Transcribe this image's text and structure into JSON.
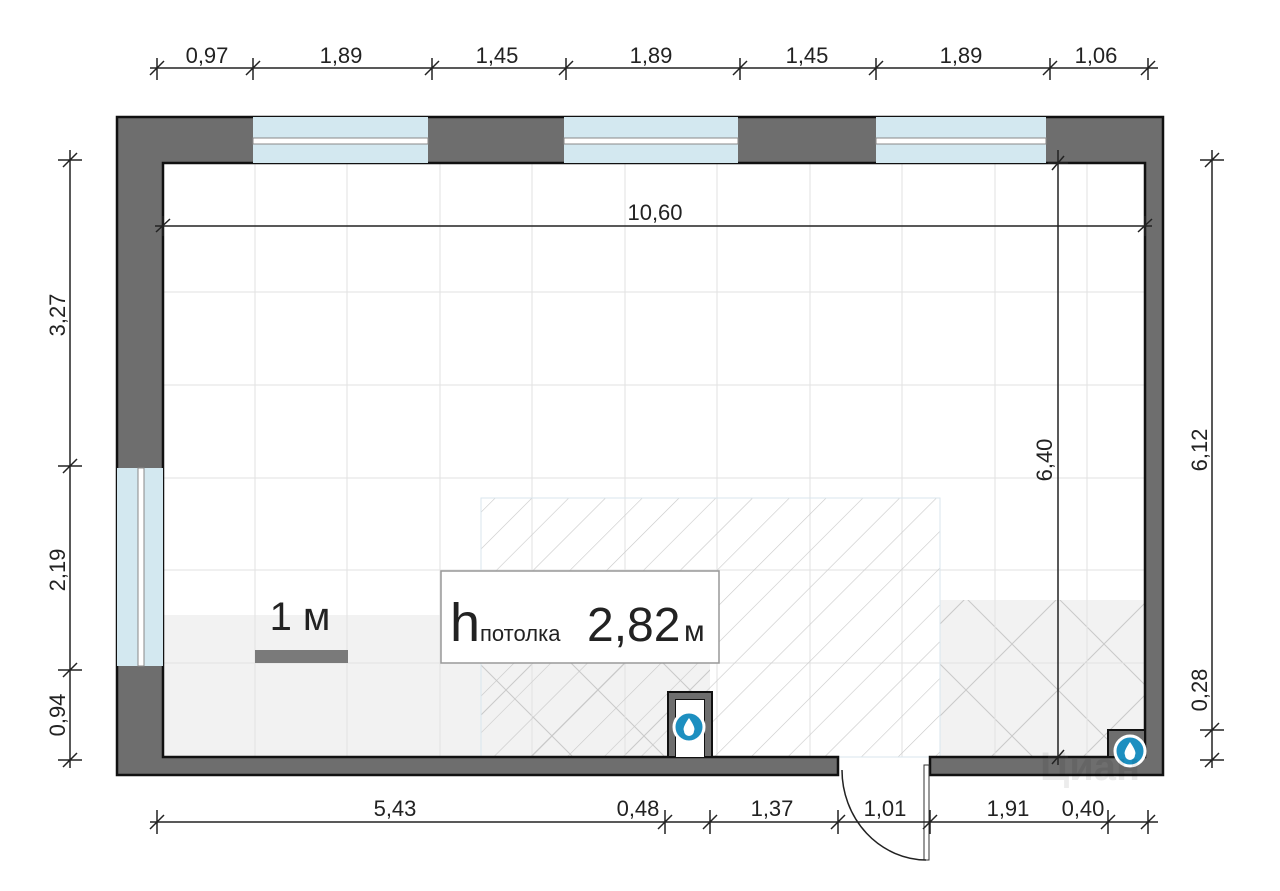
{
  "dimensions": {
    "top": [
      "0,97",
      "1,89",
      "1,45",
      "1,89",
      "1,45",
      "1,89",
      "1,06"
    ],
    "left": [
      "3,27",
      "2,19",
      "0,94"
    ],
    "right": [
      "6,12",
      "0,28"
    ],
    "bottom": [
      "5,43",
      "0,48",
      "1,37",
      "1,01",
      "1,91",
      "0,40"
    ],
    "inner_width": "10,60",
    "inner_height": "6,40"
  },
  "scale_label": "1 м",
  "ceiling": {
    "h": "h",
    "sub": "потолка",
    "value": "2,82",
    "unit": "м"
  },
  "icons": [
    "water-drop-icon",
    "water-drop-icon"
  ],
  "watermark": "Циан",
  "colors": {
    "wall": "#6e6e6e",
    "window": "#d3e8f0",
    "tile": "#f2f2f2",
    "drop": "#1d8fc0"
  }
}
